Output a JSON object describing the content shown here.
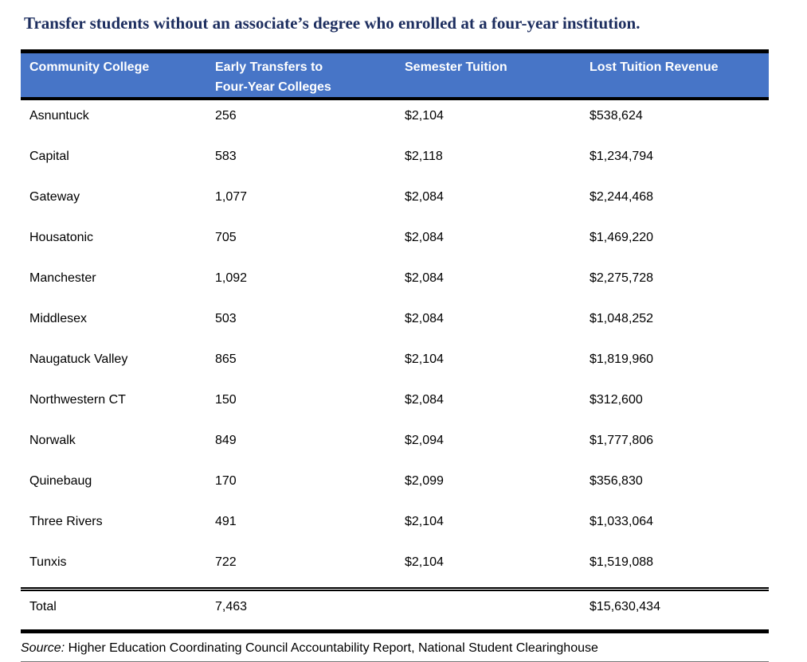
{
  "title": "Transfer students without an associate’s degree who enrolled at a four-year institution.",
  "table": {
    "headers": {
      "college": "Community College",
      "transfers": "Early Transfers to Four-Year Colleges",
      "tuition": "Semester Tuition",
      "lost_revenue": "Lost Tuition Revenue"
    },
    "rows": [
      {
        "college": "Asnuntuck",
        "transfers": "256",
        "tuition": "$2,104",
        "lost_revenue": "$538,624"
      },
      {
        "college": "Capital",
        "transfers": "583",
        "tuition": "$2,118",
        "lost_revenue": "$1,234,794"
      },
      {
        "college": "Gateway",
        "transfers": "1,077",
        "tuition": "$2,084",
        "lost_revenue": "$2,244,468"
      },
      {
        "college": "Housatonic",
        "transfers": "705",
        "tuition": "$2,084",
        "lost_revenue": "$1,469,220"
      },
      {
        "college": "Manchester",
        "transfers": "1,092",
        "tuition": "$2,084",
        "lost_revenue": "$2,275,728"
      },
      {
        "college": "Middlesex",
        "transfers": "503",
        "tuition": "$2,084",
        "lost_revenue": "$1,048,252"
      },
      {
        "college": "Naugatuck Valley",
        "transfers": "865",
        "tuition": "$2,104",
        "lost_revenue": "$1,819,960"
      },
      {
        "college": "Northwestern CT",
        "transfers": "150",
        "tuition": "$2,084",
        "lost_revenue": "$312,600"
      },
      {
        "college": "Norwalk",
        "transfers": "849",
        "tuition": "$2,094",
        "lost_revenue": "$1,777,806"
      },
      {
        "college": "Quinebaug",
        "transfers": "170",
        "tuition": "$2,099",
        "lost_revenue": "$356,830"
      },
      {
        "college": "Three Rivers",
        "transfers": "491",
        "tuition": "$2,104",
        "lost_revenue": "$1,033,064"
      },
      {
        "college": "Tunxis",
        "transfers": "722",
        "tuition": "$2,104",
        "lost_revenue": "$1,519,088"
      }
    ],
    "total": {
      "label": "Total",
      "transfers": "7,463",
      "tuition": "",
      "lost_revenue": "$15,630,434"
    }
  },
  "source": {
    "label": "Source:",
    "text": "Higher Education Coordinating Council Accountability Report, National Student Clearinghouse"
  },
  "colors": {
    "header_bg": "#4775C7",
    "title_text": "#1D2E5F",
    "border": "#000000"
  }
}
